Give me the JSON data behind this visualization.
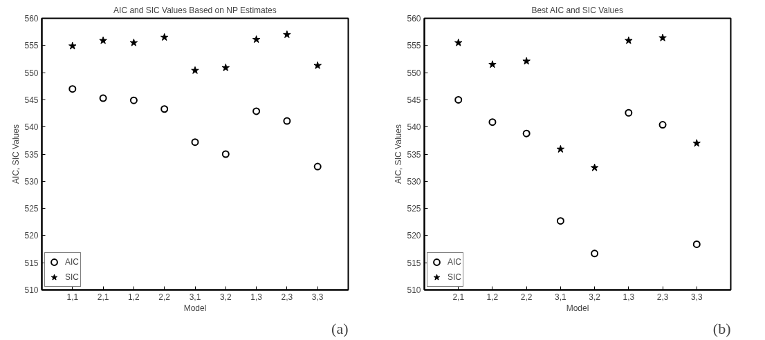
{
  "chart_data": [
    {
      "type": "scatter",
      "title": "AIC and SIC Values Based on NP Estimates",
      "xlabel": "Model",
      "ylabel": "AIC, SIC Values",
      "categories": [
        "1,1",
        "2,1",
        "1,2",
        "2,2",
        "3,1",
        "3,2",
        "1,3",
        "2,3",
        "3,3"
      ],
      "series": [
        {
          "name": "AIC",
          "color": "#000000",
          "marker": "circle",
          "values": [
            547.0,
            545.3,
            544.9,
            543.3,
            537.2,
            535.0,
            542.9,
            541.1,
            532.7
          ]
        },
        {
          "name": "SIC",
          "color": "#000000",
          "marker": "star",
          "values": [
            554.9,
            555.9,
            555.5,
            556.5,
            550.4,
            550.9,
            556.1,
            557.0,
            551.3
          ]
        }
      ],
      "ylim": [
        510,
        560
      ],
      "yticks": [
        510,
        515,
        520,
        525,
        530,
        535,
        540,
        545,
        550,
        555,
        560
      ],
      "grid": false,
      "legend": "bottom left",
      "annotations": [
        "(a)"
      ]
    },
    {
      "type": "scatter",
      "title": "Best AIC and SIC Values",
      "xlabel": "Model",
      "ylabel": "AIC, SIC Values",
      "categories": [
        "2,1",
        "1,2",
        "2,2",
        "3,1",
        "3,2",
        "1,3",
        "2,3",
        "3,3"
      ],
      "series": [
        {
          "name": "AIC",
          "color": "#000000",
          "marker": "circle",
          "values": [
            545.0,
            540.9,
            538.8,
            522.7,
            516.7,
            542.6,
            540.4,
            518.4
          ]
        },
        {
          "name": "SIC",
          "color": "#000000",
          "marker": "star",
          "values": [
            555.5,
            551.5,
            552.1,
            535.9,
            532.5,
            555.9,
            556.4,
            537.0
          ]
        }
      ],
      "ylim": [
        510,
        560
      ],
      "yticks": [
        510,
        515,
        520,
        525,
        530,
        535,
        540,
        545,
        550,
        555,
        560
      ],
      "grid": false,
      "legend": "bottom left",
      "annotations": [
        "(b)"
      ]
    }
  ]
}
